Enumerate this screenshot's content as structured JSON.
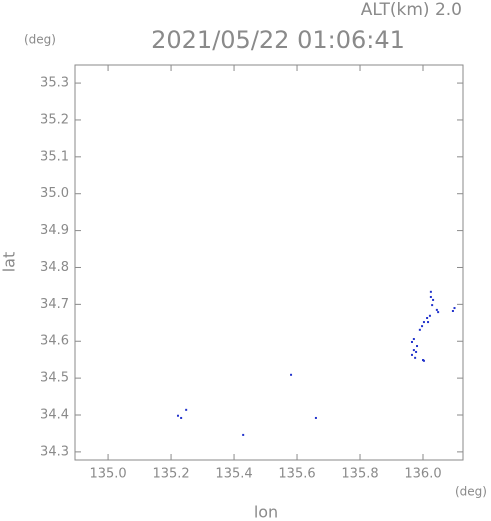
{
  "chart_data": {
    "type": "scatter",
    "title": "2021/05/22 01:06:41",
    "annotation": "ALT(km) 2.0",
    "x_label": "lon",
    "y_label": "lat",
    "x_unit": "(deg)",
    "y_unit": "(deg)",
    "color": "#2233cc",
    "x": [
      135.222,
      135.232,
      135.248,
      135.429,
      135.581,
      135.66,
      135.965,
      135.971,
      135.978,
      135.975,
      135.981,
      135.965,
      136.0,
      136.003,
      135.99,
      135.997,
      136.003,
      136.013,
      136.022,
      136.016,
      136.025,
      136.025,
      136.048,
      136.044,
      136.029,
      136.032,
      135.971,
      136.095,
      136.1
    ],
    "y": [
      34.398,
      34.392,
      34.414,
      34.346,
      34.509,
      34.392,
      34.563,
      34.576,
      34.571,
      34.555,
      34.587,
      34.598,
      34.549,
      34.547,
      34.631,
      34.641,
      34.652,
      34.663,
      34.669,
      34.652,
      34.734,
      34.72,
      34.679,
      34.685,
      34.698,
      34.712,
      34.606,
      34.682,
      34.69
    ],
    "xlim": [
      134.895,
      136.127
    ],
    "ylim": [
      34.278,
      35.349
    ],
    "xticks": [
      {
        "value": 135,
        "label": "135.0"
      },
      135.2,
      135.4,
      135.6,
      135.8,
      {
        "value": 136,
        "label": "136.0"
      }
    ],
    "yticks": [
      34.3,
      34.4,
      34.5,
      34.6,
      34.7,
      34.8,
      34.9,
      {
        "value": 35,
        "label": "35.0"
      },
      35.1,
      35.2,
      35.3
    ]
  }
}
